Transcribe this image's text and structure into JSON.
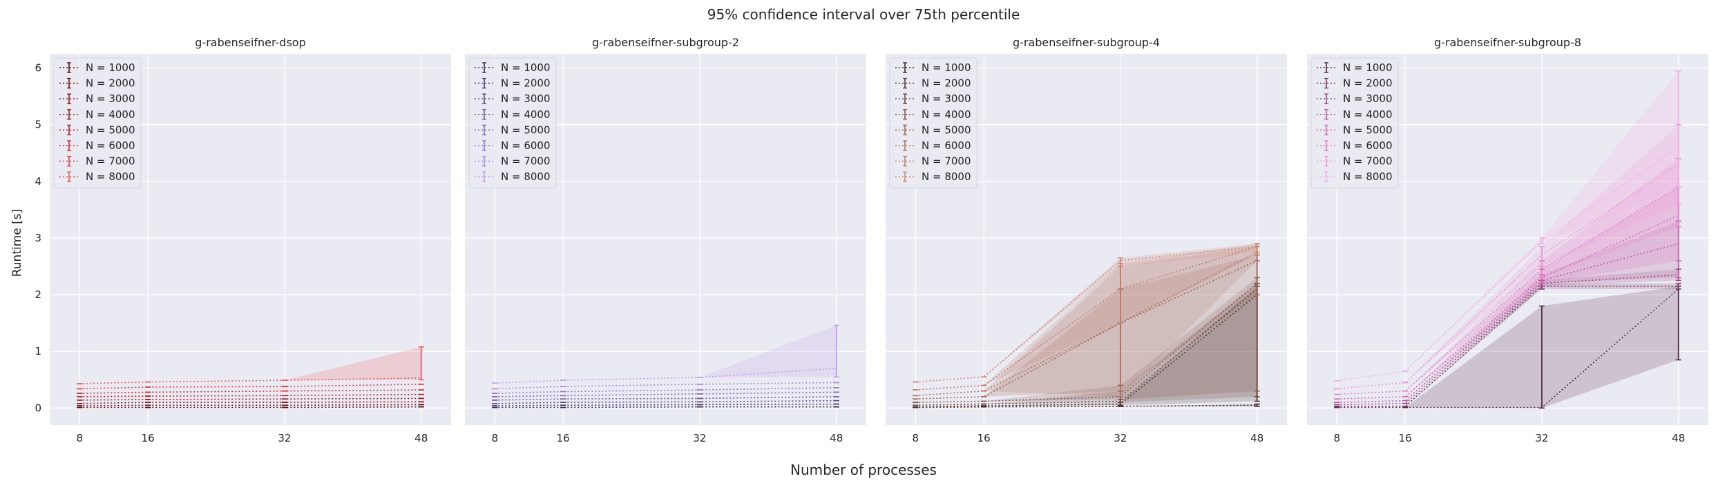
{
  "figure": {
    "title": "95% confidence interval over 75th percentile",
    "xlabel": "Number of processes",
    "ylabel": "Runtime [s]"
  },
  "chart_data": [
    {
      "type": "line",
      "title": "g-rabenseifner-dsop",
      "x": [
        8,
        16,
        32,
        48
      ],
      "xlim": [
        4.5,
        51.5
      ],
      "ylim": [
        -0.3,
        6.25
      ],
      "yticks": [
        0,
        1,
        2,
        3,
        4,
        5,
        6
      ],
      "grid": true,
      "legend": "top-left",
      "colors": [
        "#5a0a12",
        "#73101a",
        "#8c1520",
        "#a51a26",
        "#be1f2d",
        "#d62a35",
        "#e53e45",
        "#f25a58"
      ],
      "series": [
        {
          "name": "N = 1000",
          "values": [
            0.01,
            0.01,
            0.01,
            0.02
          ],
          "lower": [
            0.01,
            0.01,
            0.01,
            0.02
          ],
          "upper": [
            0.01,
            0.01,
            0.01,
            0.02
          ]
        },
        {
          "name": "N = 2000",
          "values": [
            0.04,
            0.05,
            0.05,
            0.06
          ],
          "lower": [
            0.04,
            0.05,
            0.05,
            0.06
          ],
          "upper": [
            0.04,
            0.05,
            0.05,
            0.06
          ]
        },
        {
          "name": "N = 3000",
          "values": [
            0.08,
            0.1,
            0.1,
            0.11
          ],
          "lower": [
            0.08,
            0.1,
            0.1,
            0.11
          ],
          "upper": [
            0.08,
            0.1,
            0.1,
            0.11
          ]
        },
        {
          "name": "N = 4000",
          "values": [
            0.14,
            0.15,
            0.16,
            0.17
          ],
          "lower": [
            0.14,
            0.15,
            0.16,
            0.17
          ],
          "upper": [
            0.14,
            0.15,
            0.16,
            0.17
          ]
        },
        {
          "name": "N = 5000",
          "values": [
            0.2,
            0.21,
            0.22,
            0.24
          ],
          "lower": [
            0.2,
            0.21,
            0.22,
            0.24
          ],
          "upper": [
            0.2,
            0.21,
            0.22,
            0.24
          ]
        },
        {
          "name": "N = 6000",
          "values": [
            0.26,
            0.28,
            0.3,
            0.32
          ],
          "lower": [
            0.26,
            0.28,
            0.3,
            0.32
          ],
          "upper": [
            0.26,
            0.28,
            0.3,
            0.32
          ]
        },
        {
          "name": "N = 7000",
          "values": [
            0.34,
            0.37,
            0.38,
            0.42
          ],
          "lower": [
            0.34,
            0.37,
            0.38,
            0.42
          ],
          "upper": [
            0.34,
            0.37,
            0.38,
            0.42
          ]
        },
        {
          "name": "N = 8000",
          "values": [
            0.43,
            0.46,
            0.49,
            0.53
          ],
          "lower": [
            0.43,
            0.46,
            0.49,
            0.5
          ],
          "upper": [
            0.43,
            0.46,
            0.49,
            1.08
          ]
        }
      ]
    },
    {
      "type": "line",
      "title": "g-rabenseifner-subgroup-2",
      "x": [
        8,
        16,
        32,
        48
      ],
      "xlim": [
        4.5,
        51.5
      ],
      "ylim": [
        -0.3,
        6.25
      ],
      "yticks": [
        0,
        1,
        2,
        3,
        4,
        5,
        6
      ],
      "grid": true,
      "legend": "top-left",
      "colors": [
        "#3a2f55",
        "#4a3b6c",
        "#5d4a86",
        "#7058a0",
        "#8467b8",
        "#9876cc",
        "#ad88dd",
        "#c29dec"
      ],
      "series": [
        {
          "name": "N = 1000",
          "values": [
            0.01,
            0.01,
            0.02,
            0.02
          ],
          "lower": [
            0.01,
            0.01,
            0.02,
            0.02
          ],
          "upper": [
            0.01,
            0.01,
            0.02,
            0.02
          ]
        },
        {
          "name": "N = 2000",
          "values": [
            0.04,
            0.05,
            0.06,
            0.07
          ],
          "lower": [
            0.04,
            0.05,
            0.06,
            0.07
          ],
          "upper": [
            0.04,
            0.05,
            0.06,
            0.07
          ]
        },
        {
          "name": "N = 3000",
          "values": [
            0.08,
            0.1,
            0.11,
            0.13
          ],
          "lower": [
            0.08,
            0.1,
            0.11,
            0.13
          ],
          "upper": [
            0.08,
            0.1,
            0.11,
            0.13
          ]
        },
        {
          "name": "N = 4000",
          "values": [
            0.14,
            0.16,
            0.17,
            0.2
          ],
          "lower": [
            0.14,
            0.16,
            0.17,
            0.2
          ],
          "upper": [
            0.14,
            0.16,
            0.17,
            0.2
          ]
        },
        {
          "name": "N = 5000",
          "values": [
            0.2,
            0.22,
            0.25,
            0.28
          ],
          "lower": [
            0.2,
            0.22,
            0.25,
            0.28
          ],
          "upper": [
            0.2,
            0.22,
            0.25,
            0.28
          ]
        },
        {
          "name": "N = 6000",
          "values": [
            0.26,
            0.29,
            0.32,
            0.36
          ],
          "lower": [
            0.26,
            0.29,
            0.32,
            0.36
          ],
          "upper": [
            0.26,
            0.29,
            0.32,
            0.36
          ]
        },
        {
          "name": "N = 7000",
          "values": [
            0.34,
            0.38,
            0.42,
            0.45
          ],
          "lower": [
            0.34,
            0.38,
            0.42,
            0.45
          ],
          "upper": [
            0.34,
            0.38,
            0.42,
            0.45
          ]
        },
        {
          "name": "N = 8000",
          "values": [
            0.44,
            0.49,
            0.54,
            0.7
          ],
          "lower": [
            0.44,
            0.49,
            0.54,
            0.55
          ],
          "upper": [
            0.44,
            0.49,
            0.54,
            1.46
          ]
        }
      ]
    },
    {
      "type": "line",
      "title": "g-rabenseifner-subgroup-4",
      "x": [
        8,
        16,
        32,
        48
      ],
      "xlim": [
        4.5,
        51.5
      ],
      "ylim": [
        -0.3,
        6.25
      ],
      "yticks": [
        0,
        1,
        2,
        3,
        4,
        5,
        6
      ],
      "grid": true,
      "legend": "top-left",
      "colors": [
        "#3d2a26",
        "#523833",
        "#6b4840",
        "#84574c",
        "#9c6757",
        "#b07363",
        "#c07e6c",
        "#cf8a78"
      ],
      "series": [
        {
          "name": "N = 1000",
          "values": [
            0.01,
            0.02,
            0.03,
            0.05
          ],
          "lower": [
            0.01,
            0.02,
            0.03,
            0.03
          ],
          "upper": [
            0.01,
            0.02,
            0.03,
            0.07
          ]
        },
        {
          "name": "N = 2000",
          "values": [
            0.02,
            0.04,
            0.07,
            2.0
          ],
          "lower": [
            0.02,
            0.04,
            0.05,
            0.12
          ],
          "upper": [
            0.02,
            0.04,
            0.1,
            2.15
          ]
        },
        {
          "name": "N = 3000",
          "values": [
            0.05,
            0.07,
            0.12,
            2.1
          ],
          "lower": [
            0.05,
            0.07,
            0.1,
            0.2
          ],
          "upper": [
            0.05,
            0.07,
            0.3,
            2.2
          ]
        },
        {
          "name": "N = 4000",
          "values": [
            0.1,
            0.12,
            0.2,
            2.2
          ],
          "lower": [
            0.1,
            0.12,
            0.15,
            0.3
          ],
          "upper": [
            0.1,
            0.12,
            0.4,
            2.3
          ]
        },
        {
          "name": "N = 5000",
          "values": [
            0.16,
            0.2,
            1.5,
            2.6
          ],
          "lower": [
            0.16,
            0.2,
            0.3,
            2.0
          ],
          "upper": [
            0.16,
            0.2,
            2.1,
            2.7
          ]
        },
        {
          "name": "N = 6000",
          "values": [
            0.22,
            0.3,
            1.5,
            2.75
          ],
          "lower": [
            0.22,
            0.3,
            0.2,
            2.6
          ],
          "upper": [
            0.22,
            0.3,
            2.5,
            2.85
          ]
        },
        {
          "name": "N = 7000",
          "values": [
            0.32,
            0.4,
            2.1,
            2.85
          ],
          "lower": [
            0.32,
            0.4,
            1.5,
            2.7
          ],
          "upper": [
            0.32,
            0.4,
            2.55,
            2.9
          ]
        },
        {
          "name": "N = 8000",
          "values": [
            0.46,
            0.55,
            2.6,
            2.85
          ],
          "lower": [
            0.46,
            0.55,
            2.5,
            2.75
          ],
          "upper": [
            0.46,
            0.55,
            2.65,
            2.9
          ]
        }
      ]
    },
    {
      "type": "line",
      "title": "g-rabenseifner-subgroup-8",
      "x": [
        8,
        16,
        32,
        48
      ],
      "xlim": [
        4.5,
        51.5
      ],
      "ylim": [
        -0.3,
        6.25
      ],
      "yticks": [
        0,
        1,
        2,
        3,
        4,
        5,
        6
      ],
      "grid": true,
      "legend": "top-left",
      "colors": [
        "#5a2a4a",
        "#7a3a66",
        "#9c4a84",
        "#be5aa2",
        "#d76ab9",
        "#e67dcb",
        "#ef95d9",
        "#f5aee5"
      ],
      "series": [
        {
          "name": "N = 1000",
          "values": [
            0.01,
            0.01,
            0.01,
            2.1
          ],
          "lower": [
            0.01,
            0.01,
            0.0,
            0.85
          ],
          "upper": [
            0.01,
            0.01,
            1.8,
            2.15
          ]
        },
        {
          "name": "N = 2000",
          "values": [
            0.03,
            0.03,
            2.15,
            2.15
          ],
          "lower": [
            0.03,
            0.03,
            2.1,
            2.1
          ],
          "upper": [
            0.03,
            0.03,
            2.2,
            2.2
          ]
        },
        {
          "name": "N = 3000",
          "values": [
            0.06,
            0.08,
            2.2,
            2.35
          ],
          "lower": [
            0.06,
            0.08,
            2.15,
            2.25
          ],
          "upper": [
            0.06,
            0.08,
            2.25,
            2.45
          ]
        },
        {
          "name": "N = 4000",
          "values": [
            0.1,
            0.13,
            2.25,
            2.9
          ],
          "lower": [
            0.1,
            0.13,
            2.2,
            2.3
          ],
          "upper": [
            0.1,
            0.13,
            2.35,
            3.3
          ]
        },
        {
          "name": "N = 5000",
          "values": [
            0.16,
            0.2,
            2.3,
            3.4
          ],
          "lower": [
            0.16,
            0.2,
            2.2,
            2.6
          ],
          "upper": [
            0.16,
            0.2,
            2.45,
            3.9
          ]
        },
        {
          "name": "N = 6000",
          "values": [
            0.24,
            0.3,
            2.45,
            3.9
          ],
          "lower": [
            0.24,
            0.3,
            2.3,
            3.2
          ],
          "upper": [
            0.24,
            0.3,
            2.6,
            4.4
          ]
        },
        {
          "name": "N = 7000",
          "values": [
            0.34,
            0.45,
            2.7,
            4.3
          ],
          "lower": [
            0.34,
            0.45,
            2.5,
            3.6
          ],
          "upper": [
            0.34,
            0.45,
            2.85,
            5.0
          ]
        },
        {
          "name": "N = 8000",
          "values": [
            0.48,
            0.65,
            2.95,
            4.6
          ],
          "lower": [
            0.48,
            0.65,
            2.9,
            3.9
          ],
          "upper": [
            0.48,
            0.65,
            3.0,
            5.95
          ]
        }
      ]
    }
  ]
}
